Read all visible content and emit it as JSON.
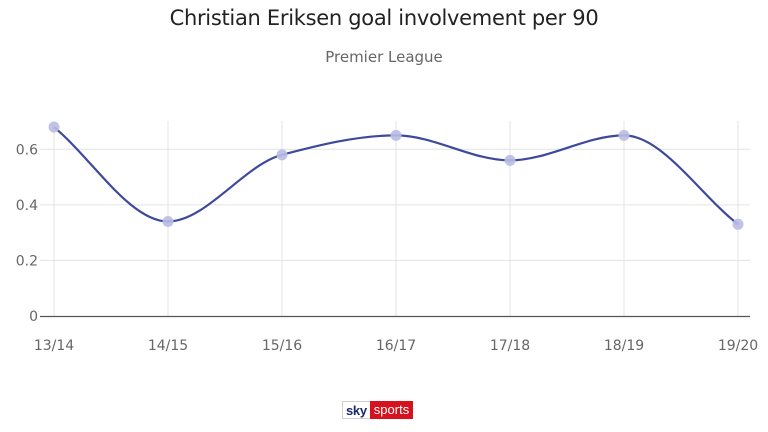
{
  "header": {
    "title": "Christian Eriksen goal involvement per 90",
    "subtitle": "Premier League"
  },
  "chart_data": {
    "type": "line",
    "title": "Christian Eriksen goal involvement per 90",
    "subtitle": "Premier League",
    "xlabel": "",
    "ylabel": "",
    "categories": [
      "13/14",
      "14/15",
      "15/16",
      "16/17",
      "17/18",
      "18/19",
      "19/20"
    ],
    "series": [
      {
        "values": [
          0.68,
          0.34,
          0.58,
          0.65,
          0.56,
          0.65,
          0.33
        ]
      }
    ],
    "ylim": [
      0,
      0.7
    ],
    "yticks": [
      0,
      0.2,
      0.4,
      0.6
    ],
    "ytick_labels": [
      "0",
      "0.2",
      "0.4",
      "0.6"
    ],
    "grid": true,
    "smooth": true,
    "colors": {
      "line": "#3d4a9c",
      "marker": "#b9bde3",
      "grid": "#e3e3e3",
      "axis": "#555555",
      "tick_label": "#666666"
    }
  },
  "logo": {
    "part1": "sky",
    "part2": "sports"
  }
}
